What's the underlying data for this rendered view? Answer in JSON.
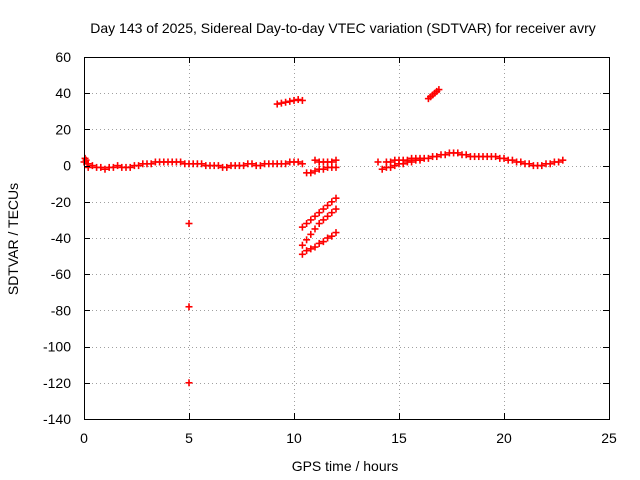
{
  "chart_data": {
    "type": "scatter",
    "title": "Day 143 of 2025, Sidereal Day-to-day VTEC variation (SDTVAR) for receiver avry",
    "xlabel": "GPS time / hours",
    "ylabel": "SDTVAR / TECUs",
    "xlim": [
      0,
      25
    ],
    "ylim": [
      -140,
      60
    ],
    "xticks": [
      0,
      5,
      10,
      15,
      20,
      25
    ],
    "yticks": [
      60,
      40,
      20,
      0,
      -20,
      -40,
      -60,
      -80,
      -100,
      -120,
      -140
    ],
    "grid": true,
    "marker": "+",
    "color": "#ff0000",
    "series": [
      {
        "name": "main",
        "x": [
          0.0,
          0.2,
          0.4,
          0.6,
          0.8,
          1.0,
          1.2,
          1.4,
          1.6,
          1.8,
          2.0,
          2.2,
          2.4,
          2.6,
          2.8,
          3.0,
          3.2,
          3.4,
          3.6,
          3.8,
          4.0,
          4.2,
          4.4,
          4.6,
          4.8,
          5.0,
          5.2,
          5.4,
          5.6,
          5.8,
          6.0,
          6.2,
          6.4,
          6.6,
          6.8,
          7.0,
          7.2,
          7.4,
          7.6,
          7.8,
          8.0,
          8.2,
          8.4,
          8.6,
          8.8,
          9.0,
          9.2,
          9.4,
          9.6,
          9.8,
          10.0,
          10.2,
          10.4
        ],
        "y": [
          2,
          1,
          0,
          -1,
          -1,
          -2,
          -1,
          -1,
          0,
          -1,
          -1,
          -1,
          0,
          0,
          1,
          1,
          1,
          2,
          2,
          2,
          2,
          2,
          2,
          2,
          1,
          1,
          1,
          1,
          1,
          0,
          0,
          0,
          0,
          -1,
          -1,
          0,
          0,
          0,
          0,
          1,
          1,
          0,
          0,
          1,
          1,
          1,
          1,
          1,
          1,
          2,
          2,
          2,
          1
        ]
      },
      {
        "name": "start-spike",
        "x": [
          0.05,
          0.1,
          0.15,
          0.2
        ],
        "y": [
          4,
          3,
          1,
          -1
        ]
      },
      {
        "name": "outliers-5h",
        "x": [
          5.0,
          5.0,
          5.0
        ],
        "y": [
          -32,
          -78,
          -120
        ]
      },
      {
        "name": "arc-35",
        "x": [
          9.2,
          9.4,
          9.6,
          9.8,
          10.0,
          10.2,
          10.4
        ],
        "y": [
          34,
          34.5,
          35,
          35.5,
          36,
          36.5,
          36
        ]
      },
      {
        "name": "seg-11a",
        "x": [
          11.0,
          11.2,
          11.4,
          11.6,
          11.8,
          12.0
        ],
        "y": [
          3,
          2,
          2,
          2,
          2,
          3
        ]
      },
      {
        "name": "seg-11b",
        "x": [
          10.6,
          10.8,
          11.0,
          11.2,
          11.4,
          11.6,
          11.8,
          12.0
        ],
        "y": [
          -4,
          -4,
          -3,
          -2,
          -2,
          -1,
          -1,
          -1
        ]
      },
      {
        "name": "diag-1",
        "x": [
          10.4,
          10.6,
          10.8,
          11.0,
          11.2,
          11.4,
          11.6,
          11.8,
          12.0
        ],
        "y": [
          -34,
          -32,
          -30,
          -28,
          -26,
          -24,
          -22,
          -20,
          -18
        ]
      },
      {
        "name": "diag-2",
        "x": [
          10.4,
          10.6,
          10.8,
          11.0,
          11.2,
          11.4,
          11.6,
          11.8,
          12.0
        ],
        "y": [
          -44,
          -41,
          -38,
          -35,
          -32,
          -30,
          -28,
          -26,
          -24
        ]
      },
      {
        "name": "diag-3",
        "x": [
          10.4,
          10.6,
          10.8,
          11.0,
          11.2,
          11.4,
          11.6,
          11.8,
          12.0
        ],
        "y": [
          -49,
          -47,
          -46,
          -45,
          -43,
          -42,
          -40,
          -39,
          -37
        ]
      },
      {
        "name": "seg-14",
        "x": [
          14.0,
          14.2,
          14.4,
          14.6,
          14.8,
          15.0,
          15.2,
          15.4,
          15.6,
          15.8,
          16.0,
          16.2,
          16.4,
          16.6,
          16.8,
          17.0,
          17.2,
          17.4,
          17.6,
          17.8,
          18.0,
          18.2,
          18.4,
          18.6,
          18.8,
          19.0,
          19.2,
          19.4
        ],
        "y": [
          2,
          -2,
          -1,
          -1,
          0,
          1,
          1,
          2,
          2,
          3,
          3,
          4,
          4,
          5,
          5,
          6,
          6,
          7,
          7,
          7,
          6,
          6,
          5,
          5,
          5,
          5,
          5,
          5
        ]
      },
      {
        "name": "seg-14-upper",
        "x": [
          14.4,
          14.6,
          14.8,
          15.0,
          15.2,
          15.4,
          15.6,
          15.8,
          16.0
        ],
        "y": [
          2,
          2,
          3,
          3,
          3,
          3,
          4,
          4,
          4
        ]
      },
      {
        "name": "arc-40",
        "x": [
          16.4,
          16.5,
          16.6,
          16.7,
          16.8,
          16.9
        ],
        "y": [
          37,
          38,
          39,
          40,
          41,
          42
        ]
      },
      {
        "name": "seg-20",
        "x": [
          19.6,
          19.8,
          20.0,
          20.2,
          20.4,
          20.6,
          20.8,
          21.0,
          21.2,
          21.4,
          21.6,
          21.8,
          22.0,
          22.2,
          22.4,
          22.6,
          22.8
        ],
        "y": [
          5,
          4,
          4,
          3,
          3,
          2,
          2,
          1,
          1,
          0,
          0,
          0,
          1,
          1,
          2,
          2,
          3
        ]
      }
    ]
  }
}
